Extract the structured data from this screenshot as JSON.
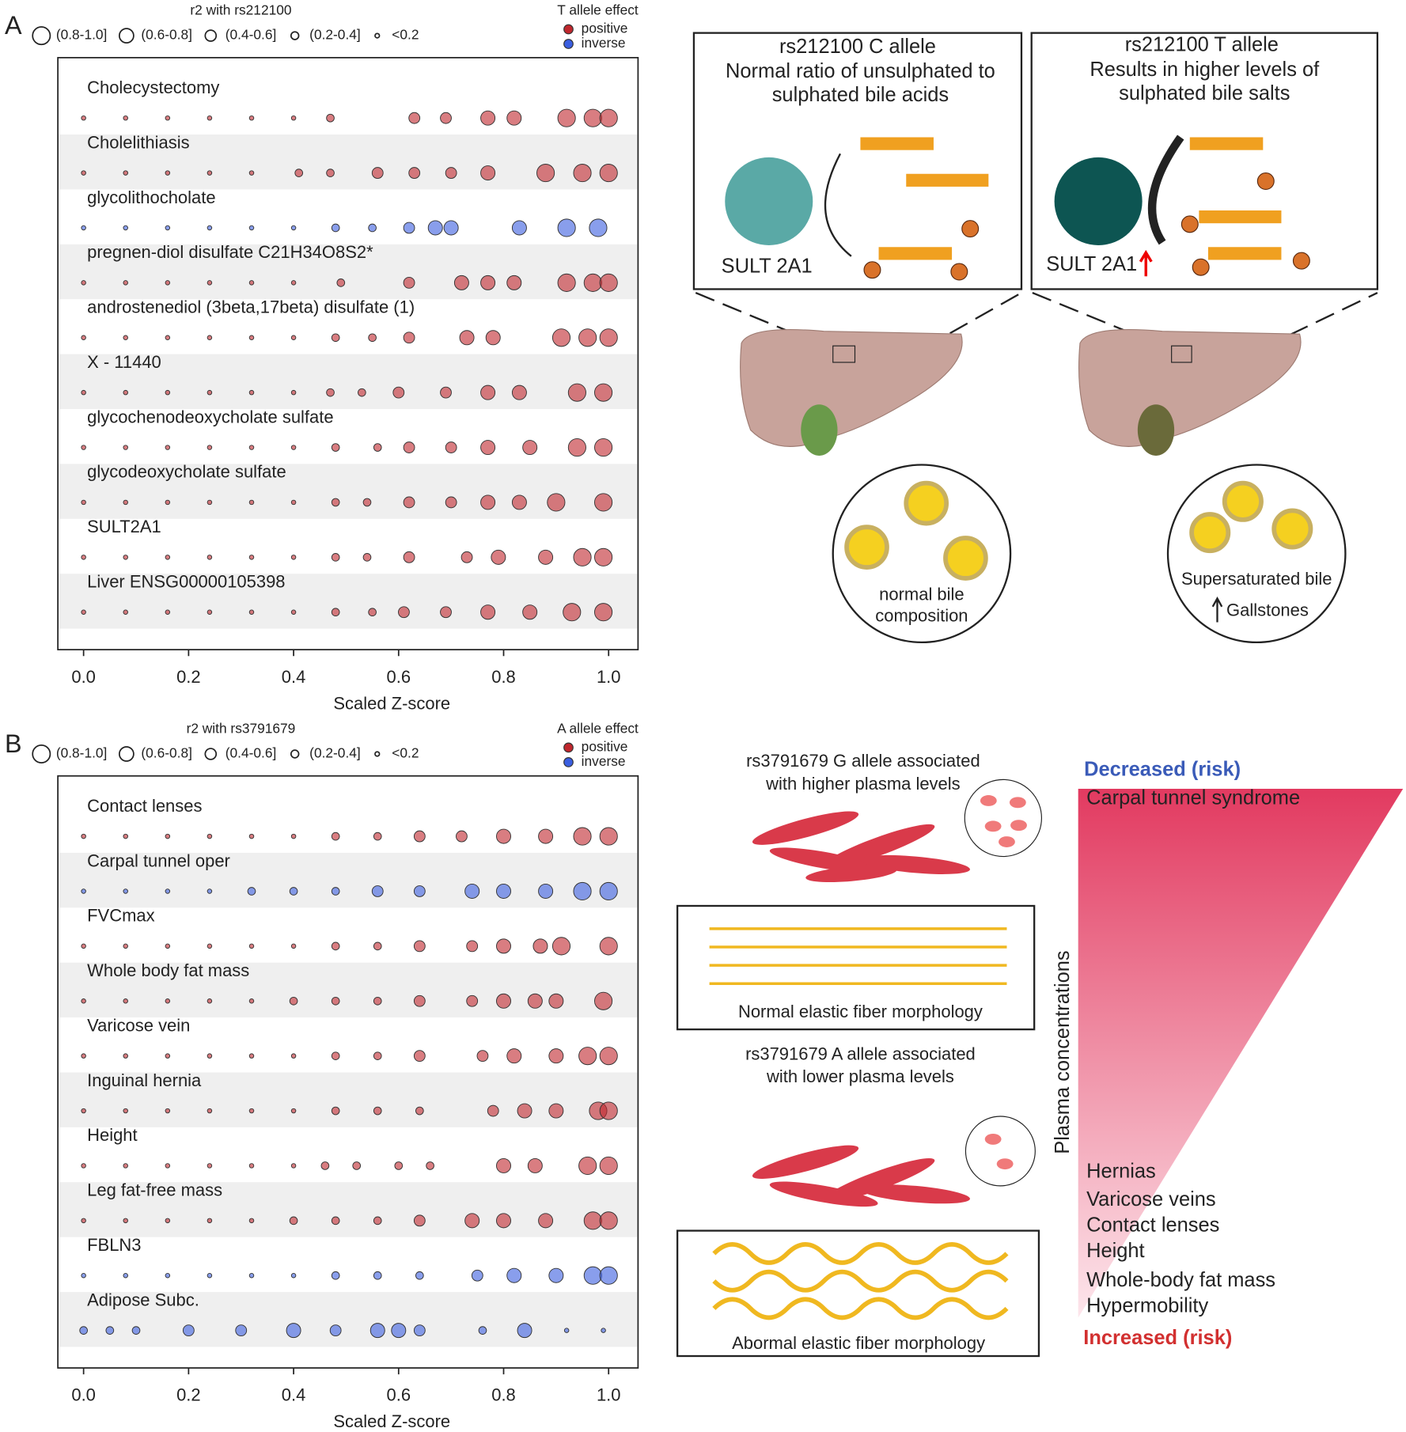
{
  "chart_data": [
    {
      "type": "scatter",
      "panel_label": "A",
      "xlabel": "Scaled Z-score",
      "xlim": [
        -0.049,
        1.056
      ],
      "xticks": [
        {
          "value": 0,
          "label": "0.0"
        },
        0.2,
        0.4,
        0.6,
        0.8,
        {
          "value": 1,
          "label": "1.0"
        }
      ],
      "row_bands": true,
      "size_legend": {
        "title": "r2 with rs212100",
        "items": [
          {
            "label": "(0.8-1.0]",
            "r2": 0.9
          },
          {
            "label": "(0.6-0.8]",
            "r2": 0.7
          },
          {
            "label": "(0.4-0.6]",
            "r2": 0.5
          },
          {
            "label": "(0.2-0.4]",
            "r2": 0.3
          },
          {
            "label": "<0.2",
            "r2": 0.1
          }
        ]
      },
      "color_legend": {
        "title": "T allele effect",
        "items": [
          {
            "label": "positive",
            "color": "#c0272d"
          },
          {
            "label": "inverse",
            "color": "#3a5ee0"
          }
        ]
      },
      "categories": [
        "Cholecystectomy",
        "Cholelithiasis",
        "glycolithocholate",
        "pregnen-diol disulfate C21H34O8S2*",
        "androstenediol (3beta,17beta) disulfate (1)",
        "X - 11440",
        "glycochenodeoxycholate sulfate",
        "glycodeoxycholate sulfate",
        "SULT2A1",
        "Liver ENSG00000105398"
      ],
      "rows": [
        {
          "color": "#c0272d",
          "x": [
            0,
            0.08,
            0.16,
            0.24,
            0.32,
            0.4,
            0.47,
            0.63,
            0.69,
            0.77,
            0.82,
            0.92,
            0.97,
            1.0
          ],
          "r2": [
            0.1,
            0.1,
            0.1,
            0.1,
            0.1,
            0.1,
            0.3,
            0.5,
            0.5,
            0.7,
            0.7,
            0.9,
            0.9,
            0.9
          ]
        },
        {
          "color": "#c0272d",
          "x": [
            0,
            0.08,
            0.16,
            0.24,
            0.32,
            0.41,
            0.47,
            0.56,
            0.63,
            0.7,
            0.77,
            0.88,
            0.95,
            1.0
          ],
          "r2": [
            0.1,
            0.1,
            0.1,
            0.1,
            0.1,
            0.3,
            0.3,
            0.5,
            0.5,
            0.5,
            0.7,
            0.9,
            0.9,
            0.9
          ]
        },
        {
          "color": "#3a5ee0",
          "x": [
            0,
            0.08,
            0.16,
            0.24,
            0.32,
            0.4,
            0.48,
            0.55,
            0.62,
            0.67,
            0.7,
            0.83,
            0.92,
            0.98
          ],
          "r2": [
            0.1,
            0.1,
            0.1,
            0.1,
            0.1,
            0.1,
            0.3,
            0.3,
            0.5,
            0.7,
            0.7,
            0.7,
            0.9,
            0.9
          ]
        },
        {
          "color": "#c0272d",
          "x": [
            0,
            0.08,
            0.16,
            0.24,
            0.32,
            0.4,
            0.49,
            0.62,
            0.72,
            0.77,
            0.82,
            0.92,
            0.97,
            1.0
          ],
          "r2": [
            0.1,
            0.1,
            0.1,
            0.1,
            0.1,
            0.1,
            0.3,
            0.5,
            0.7,
            0.7,
            0.7,
            0.9,
            0.9,
            0.9
          ]
        },
        {
          "color": "#c0272d",
          "x": [
            0,
            0.08,
            0.16,
            0.24,
            0.32,
            0.4,
            0.48,
            0.55,
            0.62,
            0.73,
            0.78,
            0.91,
            0.96,
            1.0
          ],
          "r2": [
            0.1,
            0.1,
            0.1,
            0.1,
            0.1,
            0.1,
            0.3,
            0.3,
            0.5,
            0.7,
            0.7,
            0.9,
            0.9,
            0.9
          ]
        },
        {
          "color": "#c0272d",
          "x": [
            0,
            0.08,
            0.16,
            0.24,
            0.32,
            0.4,
            0.47,
            0.53,
            0.6,
            0.69,
            0.77,
            0.83,
            0.94,
            0.99
          ],
          "r2": [
            0.1,
            0.1,
            0.1,
            0.1,
            0.1,
            0.1,
            0.3,
            0.3,
            0.5,
            0.5,
            0.7,
            0.7,
            0.9,
            0.9
          ]
        },
        {
          "color": "#c0272d",
          "x": [
            0,
            0.08,
            0.16,
            0.24,
            0.32,
            0.4,
            0.48,
            0.56,
            0.62,
            0.7,
            0.77,
            0.85,
            0.94,
            0.99
          ],
          "r2": [
            0.1,
            0.1,
            0.1,
            0.1,
            0.1,
            0.1,
            0.3,
            0.3,
            0.5,
            0.5,
            0.7,
            0.7,
            0.9,
            0.9
          ]
        },
        {
          "color": "#c0272d",
          "x": [
            0,
            0.08,
            0.16,
            0.24,
            0.32,
            0.4,
            0.48,
            0.54,
            0.62,
            0.7,
            0.77,
            0.83,
            0.9,
            0.99
          ],
          "r2": [
            0.1,
            0.1,
            0.1,
            0.1,
            0.1,
            0.1,
            0.3,
            0.3,
            0.5,
            0.5,
            0.7,
            0.7,
            0.9,
            0.9
          ]
        },
        {
          "color": "#c0272d",
          "x": [
            0,
            0.08,
            0.16,
            0.24,
            0.32,
            0.4,
            0.48,
            0.54,
            0.62,
            0.73,
            0.79,
            0.88,
            0.95,
            0.99
          ],
          "r2": [
            0.1,
            0.1,
            0.1,
            0.1,
            0.1,
            0.1,
            0.3,
            0.3,
            0.5,
            0.5,
            0.7,
            0.7,
            0.9,
            0.9
          ]
        },
        {
          "color": "#c0272d",
          "x": [
            0,
            0.08,
            0.16,
            0.24,
            0.32,
            0.4,
            0.48,
            0.55,
            0.61,
            0.69,
            0.77,
            0.85,
            0.93,
            0.99
          ],
          "r2": [
            0.1,
            0.1,
            0.1,
            0.1,
            0.1,
            0.1,
            0.3,
            0.3,
            0.5,
            0.5,
            0.7,
            0.7,
            0.9,
            0.9
          ]
        }
      ]
    },
    {
      "type": "scatter",
      "panel_label": "B",
      "xlabel": "Scaled Z-score",
      "xlim": [
        -0.049,
        1.056
      ],
      "xticks": [
        {
          "value": 0,
          "label": "0.0"
        },
        0.2,
        0.4,
        0.6,
        0.8,
        {
          "value": 1,
          "label": "1.0"
        }
      ],
      "row_bands": true,
      "size_legend": {
        "title": "r2 with rs3791679",
        "items": [
          {
            "label": "(0.8-1.0]",
            "r2": 0.9
          },
          {
            "label": "(0.6-0.8]",
            "r2": 0.7
          },
          {
            "label": "(0.4-0.6]",
            "r2": 0.5
          },
          {
            "label": "(0.2-0.4]",
            "r2": 0.3
          },
          {
            "label": "<0.2",
            "r2": 0.1
          }
        ]
      },
      "color_legend": {
        "title": "A allele effect",
        "items": [
          {
            "label": "positive",
            "color": "#c0272d"
          },
          {
            "label": "inverse",
            "color": "#3a5ee0"
          }
        ]
      },
      "categories": [
        "Contact lenses",
        "Carpal tunnel oper",
        "FVCmax",
        "Whole body fat mass",
        "Varicose vein",
        "Inguinal hernia",
        "Height",
        "Leg fat-free mass",
        "FBLN3",
        "Adipose Subc."
      ],
      "rows": [
        {
          "color": "#c0272d",
          "x": [
            0,
            0.08,
            0.16,
            0.24,
            0.32,
            0.4,
            0.48,
            0.56,
            0.64,
            0.72,
            0.8,
            0.88,
            0.95,
            1.0
          ],
          "r2": [
            0.1,
            0.1,
            0.1,
            0.1,
            0.1,
            0.1,
            0.3,
            0.3,
            0.5,
            0.5,
            0.7,
            0.7,
            0.9,
            0.9
          ]
        },
        {
          "color": "#3a5ee0",
          "x": [
            0,
            0.08,
            0.16,
            0.24,
            0.32,
            0.4,
            0.48,
            0.56,
            0.64,
            0.74,
            0.8,
            0.88,
            0.95,
            1.0
          ],
          "r2": [
            0.1,
            0.1,
            0.1,
            0.1,
            0.3,
            0.3,
            0.3,
            0.5,
            0.5,
            0.7,
            0.7,
            0.7,
            0.9,
            0.9
          ]
        },
        {
          "color": "#c0272d",
          "x": [
            0,
            0.08,
            0.16,
            0.24,
            0.32,
            0.4,
            0.48,
            0.56,
            0.64,
            0.74,
            0.8,
            0.87,
            0.91,
            1.0
          ],
          "r2": [
            0.1,
            0.1,
            0.1,
            0.1,
            0.1,
            0.1,
            0.3,
            0.3,
            0.5,
            0.5,
            0.7,
            0.7,
            0.9,
            0.9
          ]
        },
        {
          "color": "#c0272d",
          "x": [
            0,
            0.08,
            0.16,
            0.24,
            0.32,
            0.4,
            0.48,
            0.56,
            0.64,
            0.74,
            0.8,
            0.86,
            0.9,
            0.99
          ],
          "r2": [
            0.1,
            0.1,
            0.1,
            0.1,
            0.1,
            0.3,
            0.3,
            0.3,
            0.5,
            0.5,
            0.7,
            0.7,
            0.7,
            0.9
          ]
        },
        {
          "color": "#c0272d",
          "x": [
            0,
            0.08,
            0.16,
            0.24,
            0.32,
            0.4,
            0.48,
            0.56,
            0.64,
            0.76,
            0.82,
            0.9,
            0.96,
            1.0
          ],
          "r2": [
            0.1,
            0.1,
            0.1,
            0.1,
            0.1,
            0.1,
            0.3,
            0.3,
            0.5,
            0.5,
            0.7,
            0.7,
            0.9,
            0.9
          ]
        },
        {
          "color": "#c0272d",
          "x": [
            0,
            0.08,
            0.16,
            0.24,
            0.32,
            0.4,
            0.48,
            0.56,
            0.64,
            0.78,
            0.84,
            0.9,
            0.98,
            1.0
          ],
          "r2": [
            0.1,
            0.1,
            0.1,
            0.1,
            0.1,
            0.1,
            0.3,
            0.3,
            0.3,
            0.5,
            0.7,
            0.7,
            0.9,
            0.9
          ]
        },
        {
          "color": "#c0272d",
          "x": [
            0,
            0.08,
            0.16,
            0.24,
            0.32,
            0.4,
            0.46,
            0.52,
            0.6,
            0.66,
            0.8,
            0.86,
            0.96,
            1.0
          ],
          "r2": [
            0.1,
            0.1,
            0.1,
            0.1,
            0.1,
            0.1,
            0.3,
            0.3,
            0.3,
            0.3,
            0.7,
            0.7,
            0.9,
            0.9
          ]
        },
        {
          "color": "#c0272d",
          "x": [
            0,
            0.08,
            0.16,
            0.24,
            0.32,
            0.4,
            0.48,
            0.56,
            0.64,
            0.74,
            0.8,
            0.88,
            0.97,
            1.0
          ],
          "r2": [
            0.1,
            0.1,
            0.1,
            0.1,
            0.1,
            0.3,
            0.3,
            0.3,
            0.5,
            0.7,
            0.7,
            0.7,
            0.9,
            0.9
          ]
        },
        {
          "color": "#3a5ee0",
          "x": [
            0,
            0.08,
            0.16,
            0.24,
            0.32,
            0.4,
            0.48,
            0.56,
            0.64,
            0.75,
            0.82,
            0.9,
            0.97,
            1.0
          ],
          "r2": [
            0.1,
            0.1,
            0.1,
            0.1,
            0.1,
            0.1,
            0.3,
            0.3,
            0.3,
            0.5,
            0.7,
            0.7,
            0.9,
            0.9
          ]
        },
        {
          "color": "#3a5ee0",
          "x": [
            0,
            0.05,
            0.1,
            0.2,
            0.3,
            0.4,
            0.48,
            0.56,
            0.6,
            0.64,
            0.76,
            0.84,
            0.92,
            0.99
          ],
          "r2": [
            0.3,
            0.3,
            0.3,
            0.5,
            0.5,
            0.7,
            0.5,
            0.7,
            0.7,
            0.5,
            0.3,
            0.7,
            0.1,
            0.1
          ]
        }
      ]
    }
  ],
  "diagram_a": {
    "c_allele": [
      "rs212100 C allele",
      "Normal ratio of unsulphated to",
      "sulphated bile acids"
    ],
    "t_allele": [
      "rs212100 T allele",
      "Results in higher levels of",
      "sulphated bile salts"
    ],
    "enzyme": "SULT 2A1",
    "normal_bile": [
      "normal bile",
      "composition"
    ],
    "supersaturated": "Supersaturated bile",
    "gallstones": "Gallstones"
  },
  "diagram_b": {
    "g_allele": [
      "rs3791679 G allele associated",
      "with higher plasma levels"
    ],
    "normal_fiber": "Normal elastic fiber morphology",
    "a_allele": [
      "rs3791679 A allele associated",
      "with lower plasma levels"
    ],
    "abnormal_fiber": "Abormal elastic fiber morphology",
    "decreased": "Decreased (risk)",
    "top_trait": "Carpal tunnel syndrome",
    "axis": "Plasma concentrations",
    "bottom_traits": [
      "Hernias",
      "Varicose veins",
      "Contact lenses",
      "Height",
      "Whole-body fat mass",
      "Hypermobility"
    ],
    "increased": "Increased (risk)"
  }
}
